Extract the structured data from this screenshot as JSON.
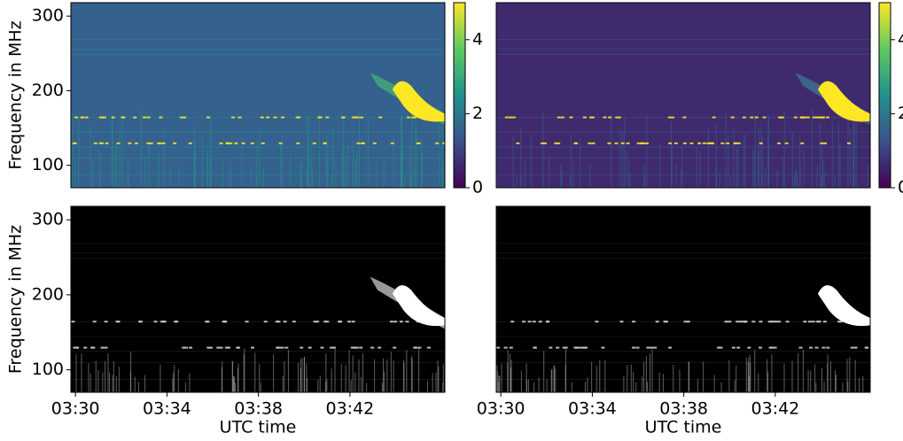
{
  "chart_data": [
    {
      "type": "heatmap",
      "ylabel": "Frequency in MHz",
      "colormap": "viridis",
      "xlim": [
        209.8,
        226.15
      ],
      "ylim": [
        70,
        318
      ],
      "yticks": [
        100,
        200,
        300
      ],
      "colorbar": {
        "lim": [
          0,
          5
        ],
        "ticks": [
          0,
          2,
          4
        ]
      }
    },
    {
      "type": "heatmap",
      "colormap": "viridis-dark",
      "xlim": [
        209.8,
        226.15
      ],
      "ylim": [
        70,
        318
      ],
      "colorbar": {
        "lim": [
          0,
          5
        ],
        "ticks": [
          0,
          2,
          4
        ]
      }
    },
    {
      "type": "heatmap",
      "ylabel": "Frequency in MHz",
      "xlabel": "UTC time",
      "colormap": "binary",
      "xlim": [
        209.8,
        226.15
      ],
      "ylim": [
        70,
        318
      ],
      "yticks": [
        100,
        200,
        300
      ],
      "xticks": [
        {
          "value": 210,
          "label": "03:30"
        },
        {
          "value": 214,
          "label": "03:34"
        },
        {
          "value": 218,
          "label": "03:38"
        },
        {
          "value": 222,
          "label": "03:42"
        }
      ]
    },
    {
      "type": "heatmap",
      "xlabel": "UTC time",
      "colormap": "binary",
      "xlim": [
        209.8,
        226.15
      ],
      "ylim": [
        70,
        318
      ],
      "xticks": [
        {
          "value": 210,
          "label": "03:30"
        },
        {
          "value": 214,
          "label": "03:34"
        },
        {
          "value": 218,
          "label": "03:38"
        },
        {
          "value": 222,
          "label": "03:42"
        }
      ]
    }
  ]
}
